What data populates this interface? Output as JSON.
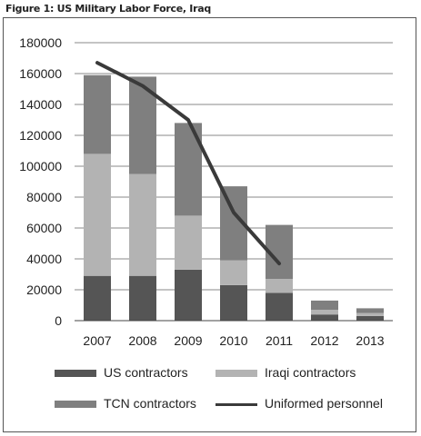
{
  "chart_data": {
    "type": "bar",
    "title": "Figure 1: US Military Labor Force, Iraq",
    "categories": [
      "2007",
      "2008",
      "2009",
      "2010",
      "2011",
      "2012",
      "2013"
    ],
    "stacked": true,
    "series": [
      {
        "name": "US contractors",
        "kind": "bar",
        "color": "#555555",
        "values": [
          29000,
          29000,
          33000,
          23000,
          18000,
          4000,
          3000
        ]
      },
      {
        "name": "Iraqi contractors",
        "kind": "bar",
        "color": "#b3b3b3",
        "values": [
          79000,
          66000,
          35000,
          16000,
          9000,
          3000,
          2000
        ]
      },
      {
        "name": "TCN contractors",
        "kind": "bar",
        "color": "#7f7f7f",
        "values": [
          51000,
          63000,
          60000,
          48000,
          35000,
          6000,
          3000
        ]
      },
      {
        "name": "Uniformed personnel",
        "kind": "line",
        "color": "#3a3a3a",
        "values": [
          167000,
          152000,
          130000,
          70000,
          37000,
          null,
          null
        ]
      }
    ],
    "y_ticks": [
      "0",
      "20000",
      "40000",
      "60000",
      "80000",
      "100000",
      "120000",
      "140000",
      "160000",
      "180000"
    ],
    "ylim": [
      0,
      180000
    ],
    "grid": true,
    "legend_position": "bottom"
  },
  "legend": {
    "us": "US contractors",
    "iraqi": "Iraqi contractors",
    "tcn": "TCN contractors",
    "uniformed": "Uniformed personnel"
  }
}
